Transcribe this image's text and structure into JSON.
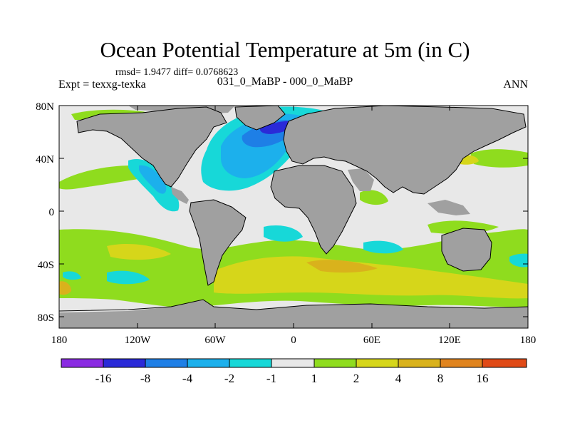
{
  "title": "Ocean Potential Temperature at 5m (in C)",
  "stats_line": "rmsd= 1.9477 diff= 0.0768623",
  "left_label": "Expt = texxg-texka",
  "center_label": "031_0_MaBP - 000_0_MaBP",
  "right_label": "ANN",
  "y_axis_ticks": [
    "80N",
    "40N",
    "0",
    "40S",
    "80S"
  ],
  "x_axis_ticks": [
    "180",
    "120W",
    "60W",
    "0",
    "60E",
    "120E",
    "180"
  ],
  "colorbar": {
    "colors": [
      "#8a2be2",
      "#2a2ad8",
      "#1e7fe6",
      "#1cb0ec",
      "#17d8d8",
      "#e8e8e8",
      "#8fdc1e",
      "#d6d61a",
      "#d9b21c",
      "#e0841e",
      "#e04a17"
    ],
    "labels": [
      "-16",
      "-8",
      "-4",
      "-2",
      "-1",
      "1",
      "2",
      "4",
      "8",
      "16"
    ]
  },
  "map_colors": {
    "land": "#a0a0a0",
    "ocean_neutral": "#e8e8e8"
  }
}
